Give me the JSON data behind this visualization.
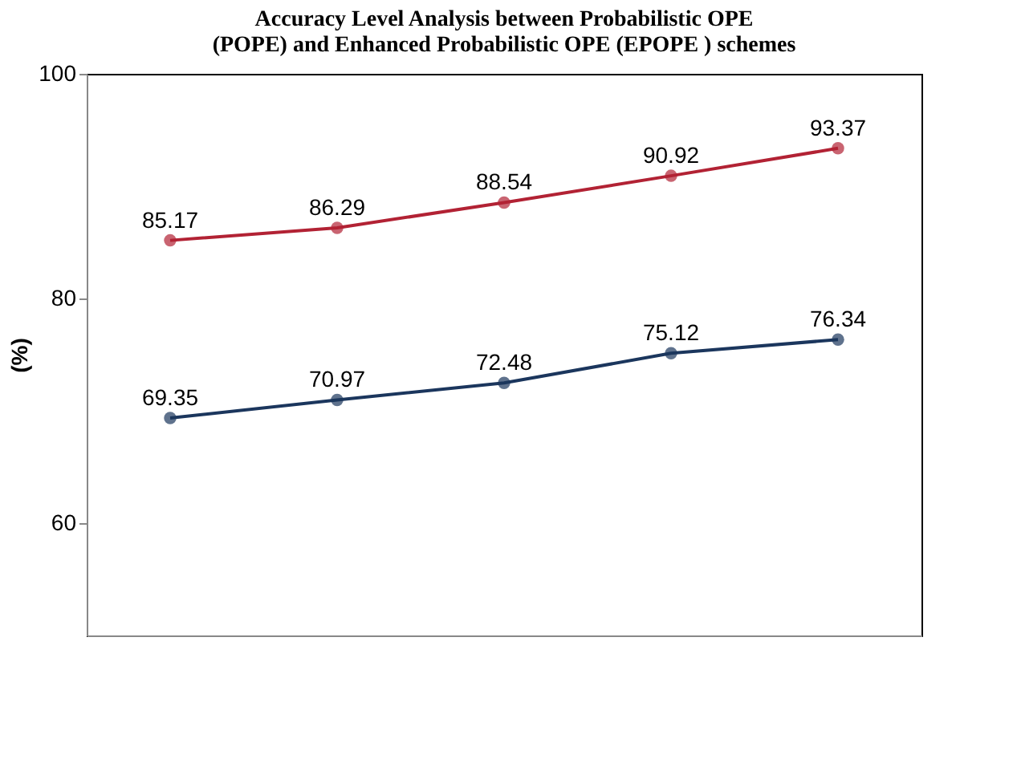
{
  "chart_data": {
    "type": "line",
    "title": "Accuracy Level Analysis between Probabilistic OPE (POPE) and Enhanced Probabilistic OPE (EPOPE ) schemes",
    "ylabel": "(%)",
    "categories": [
      null,
      null,
      null,
      null,
      null
    ],
    "series": [
      {
        "color": "#1b365d",
        "values": [
          69.35,
          70.97,
          72.48,
          75.12,
          76.34
        ]
      },
      {
        "color": "#b22234",
        "values": [
          85.17,
          86.29,
          88.54,
          90.92,
          93.37
        ]
      }
    ],
    "ylim": [
      50,
      100
    ],
    "yticks": [
      60,
      80,
      100
    ],
    "grid": false,
    "legend": false,
    "data_labels": true,
    "marker": "circle"
  }
}
